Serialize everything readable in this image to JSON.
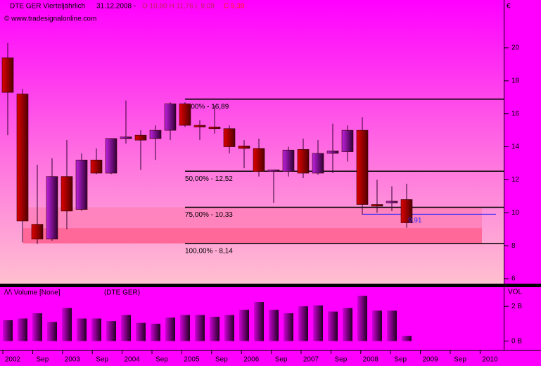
{
  "header": {
    "title": "DTE GER Vierteljährlich",
    "date": "31.12.2008 -",
    "ohl": "O 10,80  H 11,76  L 9,09",
    "close": "C 9,39",
    "website": "© www.tradesignalonline.com"
  },
  "chart_data": [
    {
      "type": "candlestick",
      "axis_label": "€",
      "open": [
        19.4,
        17.2,
        9.3,
        8.4,
        12.2,
        10.2,
        13.2,
        12.4,
        14.5,
        14.7,
        14.5,
        15.0,
        16.6,
        15.3,
        15.2,
        15.1,
        14.05,
        13.9,
        12.5,
        12.5,
        13.84,
        12.4,
        13.6,
        13.7,
        15.0,
        10.5,
        10.6,
        10.8
      ],
      "high": [
        20.3,
        17.5,
        12.9,
        13.3,
        14.4,
        13.6,
        13.9,
        14.5,
        16.8,
        15.0,
        15.3,
        16.7,
        16.7,
        15.6,
        16.5,
        15.3,
        14.4,
        14.5,
        12.6,
        14.0,
        14.5,
        14.4,
        15.4,
        15.3,
        15.8,
        12.0,
        11.6,
        11.76
      ],
      "low": [
        14.7,
        8.2,
        8.1,
        8.3,
        9.0,
        10.1,
        12.35,
        12.35,
        14.2,
        12.6,
        13.2,
        14.4,
        15.2,
        14.4,
        14.8,
        13.6,
        12.7,
        12.2,
        10.6,
        12.2,
        12.1,
        12.3,
        12.4,
        13.1,
        9.9,
        10.0,
        10.1,
        9.09
      ],
      "close": [
        17.3,
        9.5,
        8.4,
        12.2,
        10.1,
        13.2,
        12.4,
        14.5,
        14.6,
        14.4,
        15.0,
        16.6,
        15.3,
        15.2,
        15.1,
        14.0,
        13.9,
        12.5,
        12.6,
        13.8,
        12.4,
        13.6,
        13.75,
        15.0,
        10.5,
        10.4,
        10.7,
        9.39
      ],
      "up_color": "#b000b8",
      "down_color": "#c00000",
      "ylim": [
        5.7,
        22.9
      ],
      "yticks": [
        6,
        8,
        10,
        12,
        14,
        16,
        18,
        20
      ],
      "levels": [
        {
          "value": 16.89,
          "label": "0,00% - 16,89"
        },
        {
          "value": 12.52,
          "label": "50,00% - 12,52"
        },
        {
          "value": 10.33,
          "label": "75,00% - 10,33"
        },
        {
          "value": 8.14,
          "label": "100,00% - 8,14"
        }
      ],
      "marker": {
        "value": 9.91,
        "label": "9,91"
      },
      "x_labels": [
        "2002",
        "Sep",
        "2003",
        "Sep",
        "2004",
        "Sep",
        "2005",
        "Sep",
        "2006",
        "Sep",
        "2007",
        "Sep",
        "2008",
        "Sep",
        "2009",
        "Sep",
        "2010"
      ]
    },
    {
      "type": "bar",
      "title": "/\\/\\ Volume [None]",
      "subtitle": "(DTE GER)",
      "axis_label": "VOL",
      "values": [
        1.2,
        1.3,
        1.6,
        1.1,
        1.9,
        1.3,
        1.3,
        1.15,
        1.5,
        1.05,
        1.0,
        1.35,
        1.5,
        1.5,
        1.4,
        1.5,
        1.8,
        2.25,
        1.8,
        1.6,
        2.0,
        2.05,
        1.7,
        1.9,
        2.6,
        1.75,
        1.75,
        0.3
      ],
      "ylim": [
        -0.5,
        3.1
      ],
      "yticks": [
        {
          "value": 2,
          "label": "2 B"
        },
        {
          "value": 0,
          "label": "0 B"
        }
      ]
    }
  ]
}
